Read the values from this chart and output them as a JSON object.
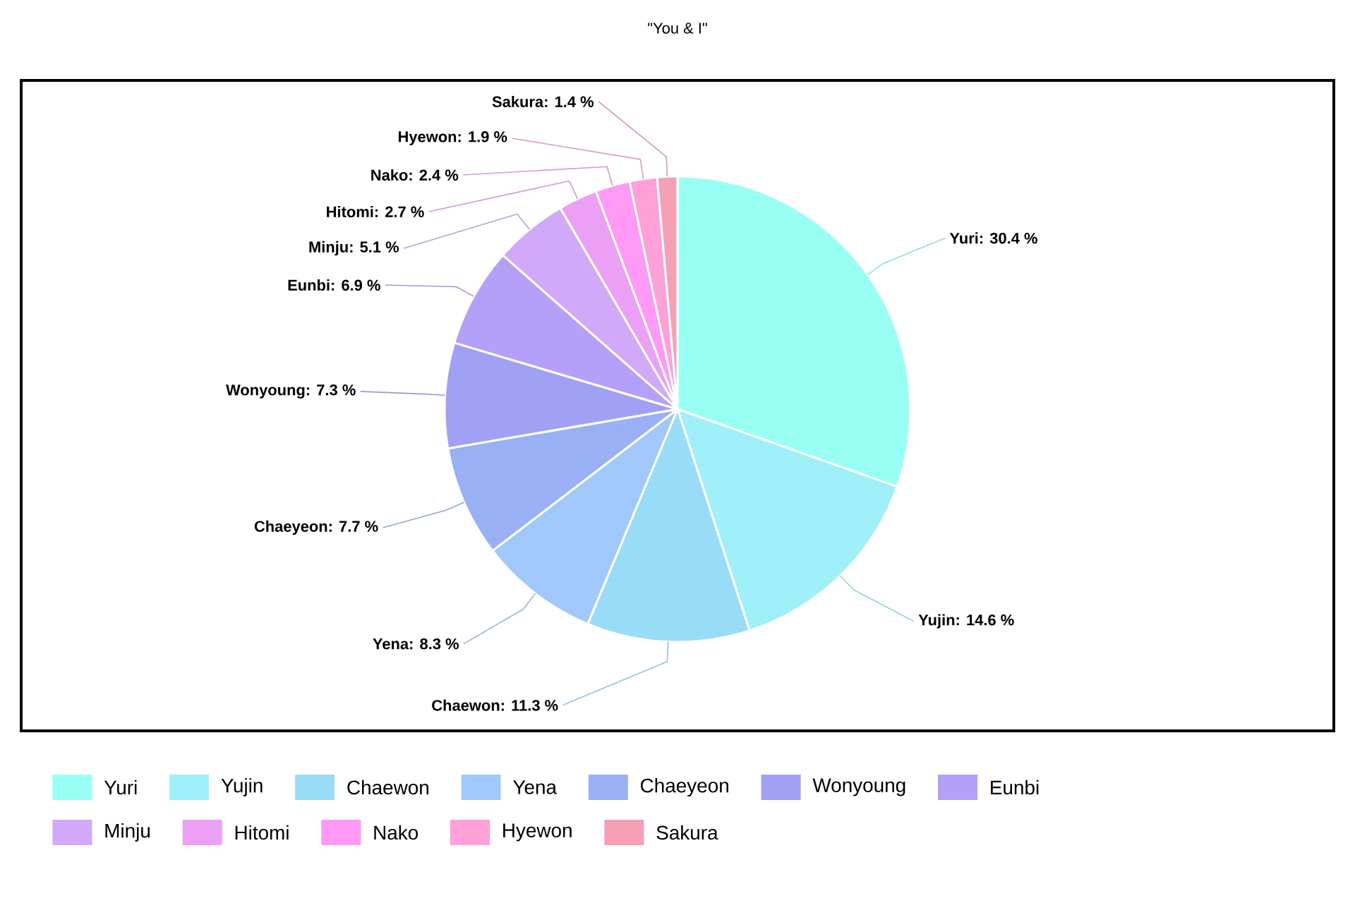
{
  "chart_data": {
    "type": "pie",
    "title": "\"You & I\"",
    "categories": [
      "Yuri",
      "Yujin",
      "Chaewon",
      "Yena",
      "Chaeyeon",
      "Wonyoung",
      "Eunbi",
      "Minju",
      "Hitomi",
      "Nako",
      "Hyewon",
      "Sakura"
    ],
    "values": [
      30.4,
      14.6,
      11.3,
      8.3,
      7.7,
      7.3,
      6.9,
      5.1,
      2.7,
      2.4,
      1.9,
      1.4
    ],
    "value_labels": [
      "Yuri: 30.4 %",
      "Yujin: 14.6 %",
      "Chaewon: 11.3 %",
      "Yena: 8.3 %",
      "Chaeyeon: 7.7 %",
      "Wonyoung: 7.3 %",
      "Eunbi: 6.9 %",
      "Minju: 5.1 %",
      "Hitomi: 2.7 %",
      "Nako: 2.4 %",
      "Hyewon: 1.9 %",
      "Sakura: 1.4 %"
    ],
    "colors": [
      "#99fff4",
      "#a0f0fa",
      "#99dcf8",
      "#a0c8fa",
      "#99b0f5",
      "#a0a0f5",
      "#b4a0f8",
      "#d2a8f8",
      "#eba0f5",
      "#ff99f5",
      "#ffa0d8",
      "#f5a0b4"
    ],
    "legend": "bottom"
  }
}
